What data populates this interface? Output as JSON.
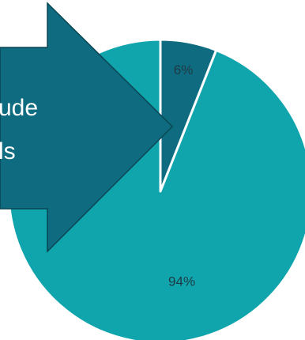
{
  "chart_data": {
    "type": "pie",
    "categories": [
      "",
      ""
    ],
    "values": [
      6,
      94
    ],
    "data_labels": [
      "6%",
      "94%"
    ],
    "colors": [
      "#0e6b80",
      "#10a4ad"
    ],
    "label_colors": [
      "#1f3a44",
      "#1f3a44"
    ],
    "separator_color": "#ffffff"
  },
  "callout": {
    "lines": [
      "ude",
      "ls"
    ],
    "fill": "#0e6b80",
    "stroke": "#0a4654"
  }
}
